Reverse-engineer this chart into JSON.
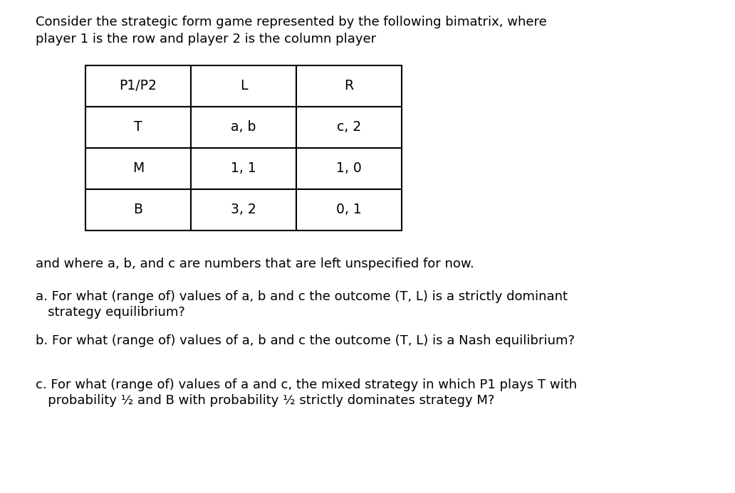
{
  "page_bg": "#ffffff",
  "intro_text_line1": "Consider the strategic form game represented by the following bimatrix, where",
  "intro_text_line2": "player 1 is the row and player 2 is the column player",
  "table": {
    "headers": [
      "P1/P2",
      "L",
      "R"
    ],
    "rows": [
      [
        "T",
        "a, b",
        "c, 2"
      ],
      [
        "M",
        "1, 1",
        "1, 0"
      ],
      [
        "B",
        "3, 2",
        "0, 1"
      ]
    ]
  },
  "text_a": "and where a, b, and c are numbers that are left unspecified for now.",
  "question_a_line1": "a. For what (range of) values of a, b and c the outcome (T, L) is a strictly dominant",
  "question_a_line2": "   strategy equilibrium?",
  "question_b": "b. For what (range of) values of a, b and c the outcome (T, L) is a Nash equilibrium?",
  "question_c_line1": "c. For what (range of) values of a and c, the mixed strategy in which P1 plays T with",
  "question_c_line2": "   probability ½ and B with probability ½ strictly dominates strategy M?",
  "font_size_intro": 13.0,
  "font_size_table": 13.5,
  "font_size_body": 13.0
}
